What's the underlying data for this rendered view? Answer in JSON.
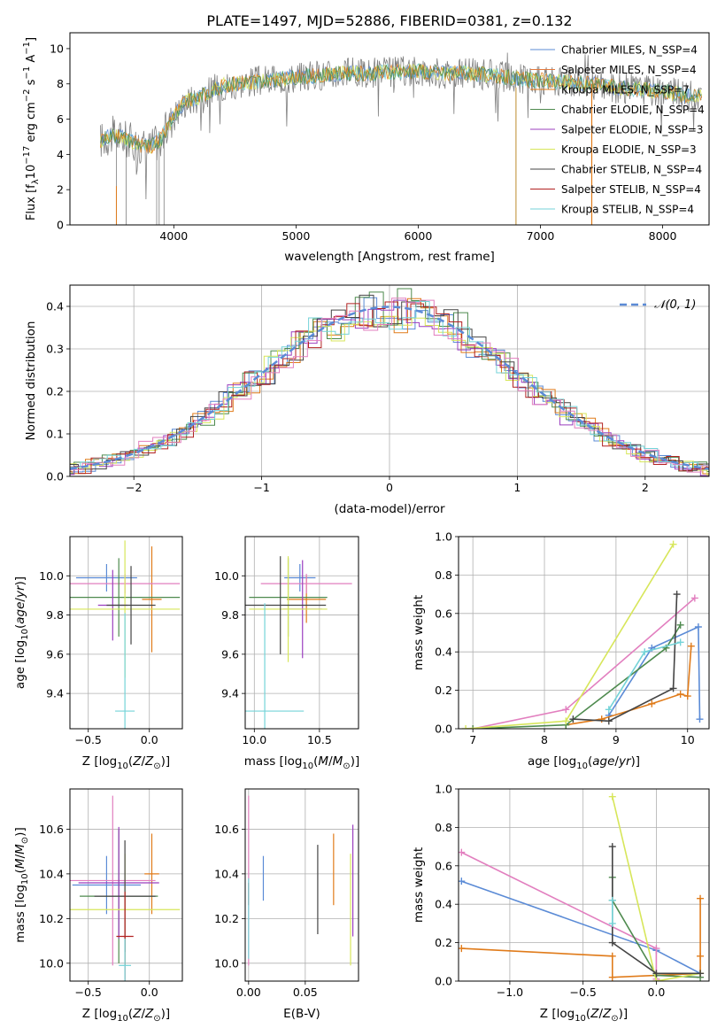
{
  "colors": {
    "miles_chabrier": "#5b8bd6",
    "miles_salpeter": "#e2793f",
    "miles_kroupa": "#e07b1a",
    "elodie_chabrier": "#4e8a4e",
    "elodie_salpeter": "#9b3fbf",
    "elodie_kroupa": "#d7e65a",
    "stelib_chabrier": "#444444",
    "stelib_salpeter": "#b22222",
    "stelib_kroupa": "#74d3d8",
    "pink": "#e27fbf",
    "data": "#808080",
    "grid": "#b0b0b0"
  },
  "chart_data": [
    {
      "id": "spectrum",
      "type": "line",
      "title": "PLATE=1497, MJD=52886, FIBERID=0381, z=0.132",
      "xlabel": "wavelength [Angstrom, rest frame]",
      "ylabel": "Flux [f_λ 10^-17 erg cm^-2 s^-1 A^-1]",
      "xlim": [
        3150,
        8380
      ],
      "ylim": [
        0,
        10.9
      ],
      "xticks": [
        "4000",
        "5000",
        "6000",
        "7000",
        "8000"
      ],
      "yticks": [
        "0",
        "2",
        "4",
        "6",
        "8",
        "10"
      ],
      "grid": false,
      "legend_position": "top-right",
      "continuum": {
        "x": [
          3400,
          3500,
          3600,
          3700,
          3800,
          3900,
          4000,
          4100,
          4200,
          4300,
          4400,
          4600,
          4800,
          5000,
          5200,
          5400,
          5600,
          5800,
          6000,
          6200,
          6400,
          6600,
          6800,
          7000,
          7200,
          7400,
          7600,
          7800,
          8000,
          8200
        ],
        "y": [
          4.8,
          5.1,
          4.9,
          4.6,
          4.4,
          4.9,
          6.2,
          7.0,
          7.2,
          7.6,
          7.9,
          8.1,
          8.2,
          8.4,
          8.5,
          8.6,
          8.6,
          8.7,
          8.7,
          8.6,
          8.6,
          8.5,
          8.3,
          8.2,
          8.1,
          8.0,
          7.8,
          7.7,
          7.6,
          7.3
        ]
      },
      "series": [
        {
          "name": "Chabrier MILES, N_SSP=4",
          "color_key": "miles_chabrier"
        },
        {
          "name": "Salpeter MILES, N_SSP=4",
          "color_key": "miles_salpeter"
        },
        {
          "name": "Kroupa MILES, N_SSP=7",
          "color_key": "miles_kroupa"
        },
        {
          "name": "Chabrier ELODIE, N_SSP=4",
          "color_key": "elodie_chabrier"
        },
        {
          "name": "Salpeter ELODIE, N_SSP=3",
          "color_key": "elodie_salpeter"
        },
        {
          "name": "Kroupa ELODIE, N_SSP=3",
          "color_key": "elodie_kroupa"
        },
        {
          "name": "Chabrier STELIB, N_SSP=4",
          "color_key": "stelib_chabrier"
        },
        {
          "name": "Salpeter STELIB, N_SSP=4",
          "color_key": "stelib_salpeter"
        },
        {
          "name": "Kroupa STELIB, N_SSP=4",
          "color_key": "stelib_kroupa"
        }
      ]
    },
    {
      "id": "histogram",
      "type": "line",
      "xlabel": "(data-model)/error",
      "ylabel": "Normed distribution",
      "xlim": [
        -2.5,
        2.5
      ],
      "ylim": [
        0,
        0.45
      ],
      "xticks": [
        "−2",
        "−1",
        "0",
        "1",
        "2"
      ],
      "yticks": [
        "0.0",
        "0.1",
        "0.2",
        "0.3",
        "0.4"
      ],
      "grid": true,
      "legend": "𝒩(0, 1)",
      "legend_position": "top-right"
    },
    {
      "id": "age_vs_Z",
      "type": "scatter",
      "xlabel": "Z [log10(Z/Z⊙)]",
      "ylabel": "age [log10(age/yr)]",
      "xlim": [
        -0.65,
        0.27
      ],
      "ylim": [
        9.22,
        10.2
      ],
      "xticks": [
        "−0.5",
        "0.0"
      ],
      "yticks": [
        "9.4",
        "9.6",
        "9.8",
        "10.0"
      ],
      "grid": true,
      "points": [
        {
          "x": -0.35,
          "y": 9.99,
          "xerr": 0.25,
          "yerr": 0.07,
          "color_key": "miles_chabrier"
        },
        {
          "x": 0.02,
          "y": 9.88,
          "xerr": 0.08,
          "yerr": 0.27,
          "color_key": "miles_kroupa"
        },
        {
          "x": -0.2,
          "y": 9.96,
          "xerr": 0.45,
          "yerr": 0.05,
          "color_key": "pink"
        },
        {
          "x": -0.25,
          "y": 9.89,
          "xerr": 0.5,
          "yerr": 0.2,
          "color_key": "elodie_chabrier"
        },
        {
          "x": -0.3,
          "y": 9.85,
          "xerr": 0.12,
          "yerr": 0.18,
          "color_key": "elodie_salpeter"
        },
        {
          "x": -0.2,
          "y": 9.83,
          "xerr": 0.45,
          "yerr": 0.35,
          "color_key": "elodie_kroupa"
        },
        {
          "x": -0.15,
          "y": 9.85,
          "xerr": 0.2,
          "yerr": 0.2,
          "color_key": "stelib_chabrier"
        },
        {
          "x": -0.2,
          "y": 9.31,
          "xerr": 0.08,
          "yerr": 0.5,
          "color_key": "stelib_kroupa"
        }
      ]
    },
    {
      "id": "age_vs_mass",
      "type": "scatter",
      "xlabel": "mass [log10(M/M⊙)]",
      "ylabel": "",
      "xlim": [
        9.93,
        10.8
      ],
      "ylim": [
        9.22,
        10.2
      ],
      "xticks": [
        "10.0",
        "10.5"
      ],
      "yticks": [
        "9.4",
        "9.6",
        "9.8",
        "10.0"
      ],
      "grid": true,
      "points": [
        {
          "x": 10.35,
          "y": 9.99,
          "xerr": 0.12,
          "yerr": 0.07,
          "color_key": "miles_chabrier"
        },
        {
          "x": 10.4,
          "y": 9.88,
          "xerr": 0.15,
          "yerr": 0.12,
          "color_key": "miles_kroupa"
        },
        {
          "x": 10.4,
          "y": 9.96,
          "xerr": 0.35,
          "yerr": 0.05,
          "color_key": "pink"
        },
        {
          "x": 10.26,
          "y": 9.89,
          "xerr": 0.3,
          "yerr": 0.2,
          "color_key": "elodie_chabrier"
        },
        {
          "x": 10.37,
          "y": 9.83,
          "xerr": 0.15,
          "yerr": 0.25,
          "color_key": "elodie_salpeter"
        },
        {
          "x": 10.26,
          "y": 9.83,
          "xerr": 0.3,
          "yerr": 0.27,
          "color_key": "elodie_kroupa"
        },
        {
          "x": 10.2,
          "y": 9.85,
          "xerr": 0.35,
          "yerr": 0.25,
          "color_key": "stelib_chabrier"
        },
        {
          "x": 10.08,
          "y": 9.31,
          "xerr": 0.3,
          "yerr": 0.55,
          "color_key": "stelib_kroupa"
        }
      ]
    },
    {
      "id": "massweight_vs_age",
      "type": "line",
      "xlabel": "age [log10(age/yr)]",
      "ylabel": "mass weight",
      "xlim": [
        6.8,
        10.3
      ],
      "ylim": [
        0,
        1.0
      ],
      "xticks": [
        "7",
        "8",
        "9",
        "10"
      ],
      "yticks": [
        "0.0",
        "0.2",
        "0.4",
        "0.6",
        "0.8",
        "1.0"
      ],
      "grid": true,
      "series": [
        {
          "color_key": "miles_chabrier",
          "x": [
            8.9,
            9.5,
            10.15,
            10.17
          ],
          "y": [
            0.07,
            0.42,
            0.53,
            0.05
          ]
        },
        {
          "color_key": "miles_kroupa",
          "x": [
            8.3,
            8.8,
            9.5,
            9.9,
            10.0,
            10.05
          ],
          "y": [
            0.02,
            0.05,
            0.13,
            0.18,
            0.17,
            0.43
          ]
        },
        {
          "color_key": "pink",
          "x": [
            7.0,
            8.3,
            10.1
          ],
          "y": [
            0.0,
            0.1,
            0.68
          ]
        },
        {
          "color_key": "elodie_chabrier",
          "x": [
            7.0,
            8.3,
            9.7,
            9.9
          ],
          "y": [
            0.0,
            0.02,
            0.42,
            0.54
          ]
        },
        {
          "color_key": "elodie_kroupa",
          "x": [
            6.9,
            8.3,
            9.8
          ],
          "y": [
            0.0,
            0.04,
            0.96
          ]
        },
        {
          "color_key": "stelib_chabrier",
          "x": [
            8.4,
            8.9,
            9.8,
            9.85
          ],
          "y": [
            0.05,
            0.04,
            0.21,
            0.7
          ]
        },
        {
          "color_key": "stelib_kroupa",
          "x": [
            8.9,
            9.4,
            9.9
          ],
          "y": [
            0.1,
            0.4,
            0.45
          ]
        }
      ]
    },
    {
      "id": "mass_vs_Z",
      "type": "scatter",
      "xlabel": "Z [log10(Z/Z⊙)]",
      "ylabel": "mass [log10(M/M⊙)]",
      "xlim": [
        -0.65,
        0.27
      ],
      "ylim": [
        9.92,
        10.78
      ],
      "xticks": [
        "−0.5",
        "0.0"
      ],
      "yticks": [
        "10.0",
        "10.2",
        "10.4",
        "10.6"
      ],
      "grid": true,
      "points": [
        {
          "x": -0.35,
          "y": 10.35,
          "xerr": 0.28,
          "yerr": 0.13,
          "color_key": "miles_chabrier"
        },
        {
          "x": 0.02,
          "y": 10.4,
          "xerr": 0.06,
          "yerr": 0.18,
          "color_key": "miles_kroupa"
        },
        {
          "x": -0.3,
          "y": 10.37,
          "xerr": 0.35,
          "yerr": 0.38,
          "color_key": "pink"
        },
        {
          "x": -0.25,
          "y": 10.3,
          "xerr": 0.32,
          "yerr": 0.3,
          "color_key": "elodie_chabrier"
        },
        {
          "x": -0.25,
          "y": 10.36,
          "xerr": 0.33,
          "yerr": 0.25,
          "color_key": "elodie_salpeter"
        },
        {
          "x": -0.2,
          "y": 10.24,
          "xerr": 0.45,
          "yerr": 0.25,
          "color_key": "elodie_kroupa"
        },
        {
          "x": -0.2,
          "y": 10.3,
          "xerr": 0.25,
          "yerr": 0.25,
          "color_key": "stelib_chabrier"
        },
        {
          "x": -0.2,
          "y": 10.12,
          "xerr": 0.07,
          "yerr": 0.2,
          "color_key": "stelib_salpeter"
        },
        {
          "x": -0.2,
          "y": 9.99,
          "xerr": 0.05,
          "yerr": 0.12,
          "color_key": "stelib_kroupa"
        }
      ]
    },
    {
      "id": "mass_vs_ebv",
      "type": "scatter",
      "xlabel": "E(B-V)",
      "ylabel": "",
      "xlim": [
        -0.003,
        0.097
      ],
      "ylim": [
        9.92,
        10.78
      ],
      "xticks": [
        "0.00",
        "0.05"
      ],
      "yticks": [
        "10.0",
        "10.2",
        "10.4",
        "10.6"
      ],
      "grid": true,
      "points": [
        {
          "x": 0.0,
          "y": 10.37,
          "xerr": 0,
          "yerr": 0.38,
          "color_key": "pink"
        },
        {
          "x": 0.0,
          "y": 10.31,
          "xerr": 0,
          "yerr": 0.05,
          "color_key": "stelib_salpeter"
        },
        {
          "x": 0.0,
          "y": 10.2,
          "xerr": 0,
          "yerr": 0.18,
          "color_key": "stelib_kroupa"
        },
        {
          "x": 0.013,
          "y": 10.38,
          "xerr": 0,
          "yerr": 0.1,
          "color_key": "miles_chabrier"
        },
        {
          "x": 0.061,
          "y": 10.33,
          "xerr": 0,
          "yerr": 0.2,
          "color_key": "stelib_chabrier"
        },
        {
          "x": 0.075,
          "y": 10.42,
          "xerr": 0,
          "yerr": 0.16,
          "color_key": "miles_kroupa"
        },
        {
          "x": 0.09,
          "y": 10.24,
          "xerr": 0,
          "yerr": 0.25,
          "color_key": "elodie_kroupa"
        },
        {
          "x": 0.092,
          "y": 10.37,
          "xerr": 0,
          "yerr": 0.25,
          "color_key": "elodie_salpeter"
        }
      ]
    },
    {
      "id": "massweight_vs_Z",
      "type": "line",
      "xlabel": "Z [log10(Z/Z⊙)]",
      "ylabel": "mass weight",
      "xlim": [
        -1.35,
        0.36
      ],
      "ylim": [
        0,
        1.0
      ],
      "xticks": [
        "−1.0",
        "−0.5",
        "0.0"
      ],
      "yticks": [
        "0.0",
        "0.2",
        "0.4",
        "0.6",
        "0.8",
        "1.0"
      ],
      "grid": true,
      "series": [
        {
          "color_key": "miles_chabrier",
          "x": [
            -1.33,
            0.0,
            0.3
          ],
          "y": [
            0.52,
            0.16,
            0.04
          ]
        },
        {
          "color_key": "miles_kroupa",
          "x": [
            -1.33,
            -0.3,
            -0.3,
            0.3,
            0.3,
            0.3
          ],
          "y": [
            0.17,
            0.13,
            0.02,
            0.04,
            0.13,
            0.43
          ]
        },
        {
          "color_key": "pink",
          "x": [
            -1.33,
            0.0,
            0.0
          ],
          "y": [
            0.67,
            0.17,
            0.01
          ]
        },
        {
          "color_key": "elodie_chabrier",
          "x": [
            -0.3,
            -0.3,
            0.0,
            0.3
          ],
          "y": [
            0.54,
            0.42,
            0.03,
            0.02
          ]
        },
        {
          "color_key": "elodie_kroupa",
          "x": [
            -0.3,
            0.0,
            0.3
          ],
          "y": [
            0.96,
            0.0,
            0.04
          ]
        },
        {
          "color_key": "stelib_chabrier",
          "x": [
            -0.3,
            -0.3,
            0.0,
            0.3
          ],
          "y": [
            0.7,
            0.2,
            0.04,
            0.04
          ]
        },
        {
          "color_key": "stelib_kroupa",
          "x": [
            -0.3,
            -0.3
          ],
          "y": [
            0.42,
            0.3
          ]
        }
      ]
    }
  ]
}
